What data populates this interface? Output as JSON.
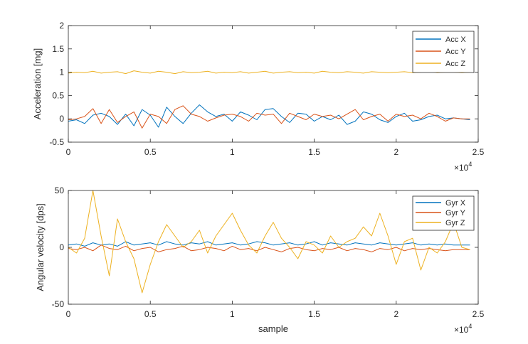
{
  "chart_data": [
    {
      "type": "line",
      "title": "",
      "xlabel": "",
      "ylabel": "Acceleration [mg]",
      "xlim": [
        0,
        25000
      ],
      "ylim": [
        -0.5,
        2
      ],
      "x_tick_labels": [
        "0",
        "0.5",
        "1",
        "1.5",
        "2",
        "2.5"
      ],
      "y_tick_labels": [
        "-0.5",
        "0",
        "0.5",
        "1",
        "1.5",
        "2"
      ],
      "x_exponent_label": "×10",
      "x_exponent_power": "4",
      "grid": false,
      "legend_position": "top-right",
      "series": [
        {
          "name": "Acc X",
          "color": "#0072BD",
          "x": [
            0,
            500,
            1000,
            1500,
            2000,
            2500,
            3000,
            3500,
            4000,
            4500,
            5000,
            5500,
            6000,
            6500,
            7000,
            7500,
            8000,
            8500,
            9000,
            9500,
            10000,
            10500,
            11000,
            11500,
            12000,
            12500,
            13000,
            13500,
            14000,
            14500,
            15000,
            15500,
            16000,
            16500,
            17000,
            17500,
            18000,
            18500,
            19000,
            19500,
            20000,
            20500,
            21000,
            21500,
            22000,
            22500,
            23000,
            23500,
            24000,
            24500
          ],
          "y": [
            -0.05,
            -0.02,
            -0.1,
            0.08,
            0.12,
            0.05,
            -0.12,
            0.1,
            -0.15,
            0.2,
            0.08,
            -0.18,
            0.25,
            0.05,
            -0.1,
            0.12,
            0.3,
            0.15,
            0.05,
            0.1,
            -0.05,
            0.15,
            0.08,
            -0.02,
            0.2,
            0.22,
            0.05,
            -0.08,
            0.12,
            0.1,
            -0.05,
            0.05,
            -0.02,
            0.08,
            -0.12,
            -0.05,
            0.15,
            0.1,
            -0.02,
            -0.08,
            0.05,
            0.12,
            -0.05,
            -0.02,
            0.05,
            0.08,
            0.0,
            0.02,
            0.0,
            -0.02
          ]
        },
        {
          "name": "Acc Y",
          "color": "#D95319",
          "x": [
            0,
            500,
            1000,
            1500,
            2000,
            2500,
            3000,
            3500,
            4000,
            4500,
            5000,
            5500,
            6000,
            6500,
            7000,
            7500,
            8000,
            8500,
            9000,
            9500,
            10000,
            10500,
            11000,
            11500,
            12000,
            12500,
            13000,
            13500,
            14000,
            14500,
            15000,
            15500,
            16000,
            16500,
            17000,
            17500,
            18000,
            18500,
            19000,
            19500,
            20000,
            20500,
            21000,
            21500,
            22000,
            22500,
            23000,
            23500,
            24000,
            24500
          ],
          "y": [
            -0.02,
            0.0,
            0.05,
            0.22,
            -0.1,
            0.2,
            -0.08,
            0.05,
            0.15,
            -0.2,
            0.1,
            0.05,
            -0.1,
            0.2,
            0.28,
            0.1,
            0.05,
            -0.05,
            0.02,
            0.08,
            0.1,
            0.05,
            -0.05,
            0.12,
            0.08,
            0.1,
            -0.1,
            0.12,
            0.05,
            -0.02,
            0.1,
            0.05,
            0.08,
            0.0,
            0.1,
            0.2,
            -0.02,
            0.05,
            0.1,
            -0.05,
            0.1,
            0.05,
            0.08,
            0.0,
            0.12,
            0.05,
            -0.05,
            0.02,
            0.0,
            0.0
          ]
        },
        {
          "name": "Acc Z",
          "color": "#EDB120",
          "x": [
            0,
            500,
            1000,
            1500,
            2000,
            2500,
            3000,
            3500,
            4000,
            4500,
            5000,
            5500,
            6000,
            6500,
            7000,
            7500,
            8000,
            8500,
            9000,
            9500,
            10000,
            10500,
            11000,
            11500,
            12000,
            12500,
            13000,
            13500,
            14000,
            14500,
            15000,
            15500,
            16000,
            16500,
            17000,
            17500,
            18000,
            18500,
            19000,
            19500,
            20000,
            20500,
            21000,
            21500,
            22000,
            22500,
            23000,
            23500,
            24000,
            24500
          ],
          "y": [
            0.98,
            1.0,
            0.99,
            1.02,
            0.98,
            1.0,
            1.01,
            0.97,
            1.03,
            1.0,
            0.98,
            1.02,
            1.0,
            0.97,
            1.01,
            0.99,
            1.0,
            1.02,
            0.98,
            1.0,
            0.99,
            1.01,
            0.98,
            1.0,
            1.02,
            0.98,
            1.0,
            1.01,
            0.99,
            1.0,
            0.98,
            1.02,
            1.0,
            0.99,
            1.01,
            1.0,
            0.98,
            1.01,
            1.0,
            0.99,
            1.0,
            1.01,
            0.99,
            1.0,
            1.01,
            0.99,
            1.0,
            1.0,
            0.99,
            1.0
          ]
        }
      ]
    },
    {
      "type": "line",
      "title": "",
      "xlabel": "sample",
      "ylabel": "Angular velocity [dps]",
      "xlim": [
        0,
        25000
      ],
      "ylim": [
        -50,
        50
      ],
      "x_tick_labels": [
        "0",
        "0.5",
        "1",
        "1.5",
        "2",
        "2.5"
      ],
      "y_tick_labels": [
        "-50",
        "0",
        "50"
      ],
      "x_exponent_label": "×10",
      "x_exponent_power": "4",
      "grid": false,
      "legend_position": "top-right",
      "series": [
        {
          "name": "Gyr X",
          "color": "#0072BD",
          "x": [
            0,
            500,
            1000,
            1500,
            2000,
            2500,
            3000,
            3500,
            4000,
            4500,
            5000,
            5500,
            6000,
            6500,
            7000,
            7500,
            8000,
            8500,
            9000,
            9500,
            10000,
            10500,
            11000,
            11500,
            12000,
            12500,
            13000,
            13500,
            14000,
            14500,
            15000,
            15500,
            16000,
            16500,
            17000,
            17500,
            18000,
            18500,
            19000,
            19500,
            20000,
            20500,
            21000,
            21500,
            22000,
            22500,
            23000,
            23500,
            24000,
            24500
          ],
          "y": [
            2,
            3,
            1,
            4,
            2,
            3,
            1,
            5,
            2,
            3,
            4,
            2,
            5,
            3,
            2,
            4,
            3,
            5,
            2,
            3,
            4,
            2,
            3,
            5,
            4,
            2,
            3,
            4,
            2,
            3,
            5,
            2,
            4,
            3,
            2,
            4,
            3,
            2,
            4,
            3,
            2,
            3,
            4,
            2,
            3,
            2,
            3,
            2,
            2,
            2
          ]
        },
        {
          "name": "Gyr Y",
          "color": "#D95319",
          "x": [
            0,
            500,
            1000,
            1500,
            2000,
            2500,
            3000,
            3500,
            4000,
            4500,
            5000,
            5500,
            6000,
            6500,
            7000,
            7500,
            8000,
            8500,
            9000,
            9500,
            10000,
            10500,
            11000,
            11500,
            12000,
            12500,
            13000,
            13500,
            14000,
            14500,
            15000,
            15500,
            16000,
            16500,
            17000,
            17500,
            18000,
            18500,
            19000,
            19500,
            20000,
            20500,
            21000,
            21500,
            22000,
            22500,
            23000,
            23500,
            24000,
            24500
          ],
          "y": [
            -1,
            -2,
            0,
            -3,
            2,
            -1,
            -2,
            1,
            -3,
            -1,
            0,
            -4,
            -2,
            -1,
            1,
            -3,
            -2,
            0,
            -1,
            -3,
            1,
            -2,
            -1,
            -3,
            0,
            -2,
            -4,
            -1,
            0,
            -2,
            -3,
            -1,
            -2,
            0,
            -3,
            -1,
            -2,
            -4,
            -1,
            -2,
            0,
            -3,
            -1,
            -2,
            -1,
            -2,
            -3,
            -2,
            -2,
            -2
          ]
        },
        {
          "name": "Gyr Z",
          "color": "#EDB120",
          "x": [
            0,
            500,
            1000,
            1500,
            2000,
            2500,
            3000,
            3500,
            4000,
            4500,
            5000,
            5500,
            6000,
            6500,
            7000,
            7500,
            8000,
            8500,
            9000,
            9500,
            10000,
            10500,
            11000,
            11500,
            12000,
            12500,
            13000,
            13500,
            14000,
            14500,
            15000,
            15500,
            16000,
            16500,
            17000,
            17500,
            18000,
            18500,
            19000,
            19500,
            20000,
            20500,
            21000,
            21500,
            22000,
            22500,
            23000,
            23500,
            24000,
            24500
          ],
          "y": [
            0,
            -5,
            8,
            50,
            10,
            -25,
            25,
            5,
            -10,
            -40,
            -15,
            5,
            20,
            10,
            0,
            5,
            15,
            -5,
            10,
            20,
            30,
            15,
            2,
            -5,
            10,
            22,
            8,
            0,
            -10,
            5,
            2,
            -5,
            10,
            0,
            5,
            8,
            18,
            10,
            30,
            10,
            -15,
            5,
            8,
            -20,
            0,
            -5,
            5,
            22,
            0,
            -2
          ]
        }
      ]
    }
  ]
}
